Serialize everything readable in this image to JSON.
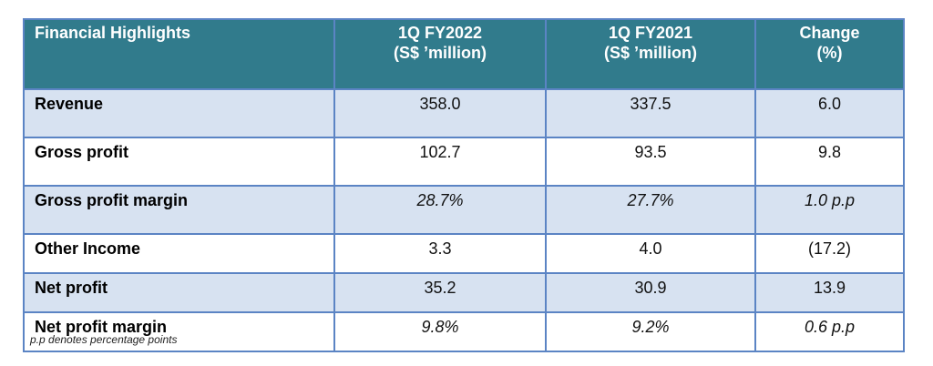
{
  "table": {
    "headers": [
      {
        "line1": "Financial Highlights",
        "line2": ""
      },
      {
        "line1": "1Q FY2022",
        "line2": "(S$ ’million)"
      },
      {
        "line1": "1Q FY2021",
        "line2": "(S$ ’million)"
      },
      {
        "line1": "Change",
        "line2": "(%)"
      }
    ],
    "rows": [
      {
        "label": "Revenue",
        "fy2022": "358.0",
        "fy2021": "337.5",
        "change": "6.0"
      },
      {
        "label": "Gross profit",
        "fy2022": "102.7",
        "fy2021": "93.5",
        "change": "9.8"
      },
      {
        "label": "Gross profit margin",
        "fy2022": "28.7%",
        "fy2021": "27.7%",
        "change": "1.0 p.p"
      },
      {
        "label": "Other Income",
        "fy2022": "3.3",
        "fy2021": "4.0",
        "change": "(17.2)"
      },
      {
        "label": "Net profit",
        "fy2022": "35.2",
        "fy2021": "30.9",
        "change": "13.9"
      },
      {
        "label": "Net profit margin",
        "fy2022": "9.8%",
        "fy2021": "9.2%",
        "change": "0.6 p.p"
      }
    ]
  },
  "footnote": "p.p denotes percentage points",
  "colors": {
    "header_bg": "#317b8c",
    "row_shade": "#d7e2f1",
    "border": "#5b84c4"
  }
}
